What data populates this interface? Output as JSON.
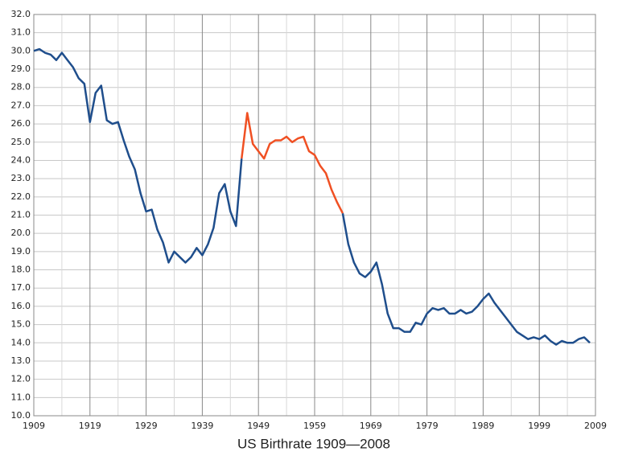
{
  "chart_data": {
    "type": "line",
    "title": "US Birthrate 1909—2008",
    "x": [
      1909,
      1910,
      1911,
      1912,
      1913,
      1914,
      1915,
      1916,
      1917,
      1918,
      1919,
      1920,
      1921,
      1922,
      1923,
      1924,
      1925,
      1926,
      1927,
      1928,
      1929,
      1930,
      1931,
      1932,
      1933,
      1934,
      1935,
      1936,
      1937,
      1938,
      1939,
      1940,
      1941,
      1942,
      1943,
      1944,
      1945,
      1946,
      1947,
      1948,
      1949,
      1950,
      1951,
      1952,
      1953,
      1954,
      1955,
      1956,
      1957,
      1958,
      1959,
      1960,
      1961,
      1962,
      1963,
      1964,
      1965,
      1966,
      1967,
      1968,
      1969,
      1970,
      1971,
      1972,
      1973,
      1974,
      1975,
      1976,
      1977,
      1978,
      1979,
      1980,
      1981,
      1982,
      1983,
      1984,
      1985,
      1986,
      1987,
      1988,
      1989,
      1990,
      1991,
      1992,
      1993,
      1994,
      1995,
      1996,
      1997,
      1998,
      1999,
      2000,
      2001,
      2002,
      2003,
      2004,
      2005,
      2006,
      2007,
      2008
    ],
    "series": [
      {
        "color": "#1f4e8c",
        "values": [
          30.0,
          30.1,
          29.9,
          29.8,
          29.5,
          29.9,
          29.5,
          29.1,
          28.5,
          28.2,
          26.1,
          27.7,
          28.1,
          26.2,
          26.0,
          26.1,
          25.1,
          24.2,
          23.5,
          22.2,
          21.2,
          21.3,
          20.2,
          19.5,
          18.4,
          19.0,
          18.7,
          18.4,
          18.7,
          19.2,
          18.8,
          19.4,
          20.3,
          22.2,
          22.7,
          21.2,
          20.4,
          24.1,
          null,
          null,
          null,
          null,
          null,
          null,
          null,
          null,
          null,
          null,
          null,
          null,
          null,
          null,
          null,
          null,
          null,
          21.1,
          19.4,
          18.4,
          17.8,
          17.6,
          17.9,
          18.4,
          17.2,
          15.6,
          14.8,
          14.8,
          14.6,
          14.6,
          15.1,
          15.0,
          15.6,
          15.9,
          15.8,
          15.9,
          15.6,
          15.6,
          15.8,
          15.6,
          15.7,
          16.0,
          16.4,
          16.7,
          16.2,
          15.8,
          15.4,
          15.0,
          14.6,
          14.4,
          14.2,
          14.3,
          14.2,
          14.4,
          14.1,
          13.9,
          14.1,
          14.0,
          14.0,
          14.2,
          14.3,
          14.0
        ]
      },
      {
        "color": "#f05023",
        "values": [
          null,
          null,
          null,
          null,
          null,
          null,
          null,
          null,
          null,
          null,
          null,
          null,
          null,
          null,
          null,
          null,
          null,
          null,
          null,
          null,
          null,
          null,
          null,
          null,
          null,
          null,
          null,
          null,
          null,
          null,
          null,
          null,
          null,
          null,
          null,
          null,
          null,
          24.1,
          26.6,
          24.9,
          24.5,
          24.1,
          24.9,
          25.1,
          25.1,
          25.3,
          25.0,
          25.2,
          25.3,
          24.5,
          24.3,
          23.7,
          23.3,
          22.4,
          21.7,
          21.1,
          null,
          null,
          null,
          null,
          null,
          null,
          null,
          null,
          null,
          null,
          null,
          null,
          null,
          null,
          null,
          null,
          null,
          null,
          null,
          null,
          null,
          null,
          null,
          null,
          null,
          null,
          null,
          null,
          null,
          null,
          null,
          null,
          null,
          null,
          null,
          null,
          null,
          null,
          null,
          null,
          null,
          null,
          null,
          null
        ]
      }
    ],
    "xlim": [
      1909,
      2009
    ],
    "xticks": [
      1909,
      1919,
      1929,
      1939,
      1949,
      1959,
      1969,
      1979,
      1989,
      1999,
      2009
    ],
    "ylim": [
      10,
      32
    ],
    "yticks": [
      {
        "value": 10,
        "label": "10.0"
      },
      {
        "value": 11,
        "label": "11.0"
      },
      {
        "value": 12,
        "label": "12.0"
      },
      {
        "value": 13,
        "label": "13.0"
      },
      {
        "value": 14,
        "label": "14.0"
      },
      {
        "value": 15,
        "label": "15.0"
      },
      {
        "value": 16,
        "label": "16.0"
      },
      {
        "value": 17,
        "label": "17.0"
      },
      {
        "value": 18,
        "label": "18.0"
      },
      {
        "value": 19,
        "label": "19.0"
      },
      {
        "value": 20,
        "label": "20.0"
      },
      {
        "value": 21,
        "label": "21.0"
      },
      {
        "value": 22,
        "label": "22.0"
      },
      {
        "value": 23,
        "label": "23.0"
      },
      {
        "value": 24,
        "label": "24.0"
      },
      {
        "value": 25,
        "label": "25.0"
      },
      {
        "value": 26,
        "label": "26.0"
      },
      {
        "value": 27,
        "label": "27.0"
      },
      {
        "value": 28,
        "label": "28.0"
      },
      {
        "value": 29,
        "label": "29.0"
      },
      {
        "value": 30,
        "label": "30.0"
      },
      {
        "value": 31,
        "label": "31.0"
      },
      {
        "value": 32,
        "label": "32.0"
      }
    ],
    "grid": true
  }
}
